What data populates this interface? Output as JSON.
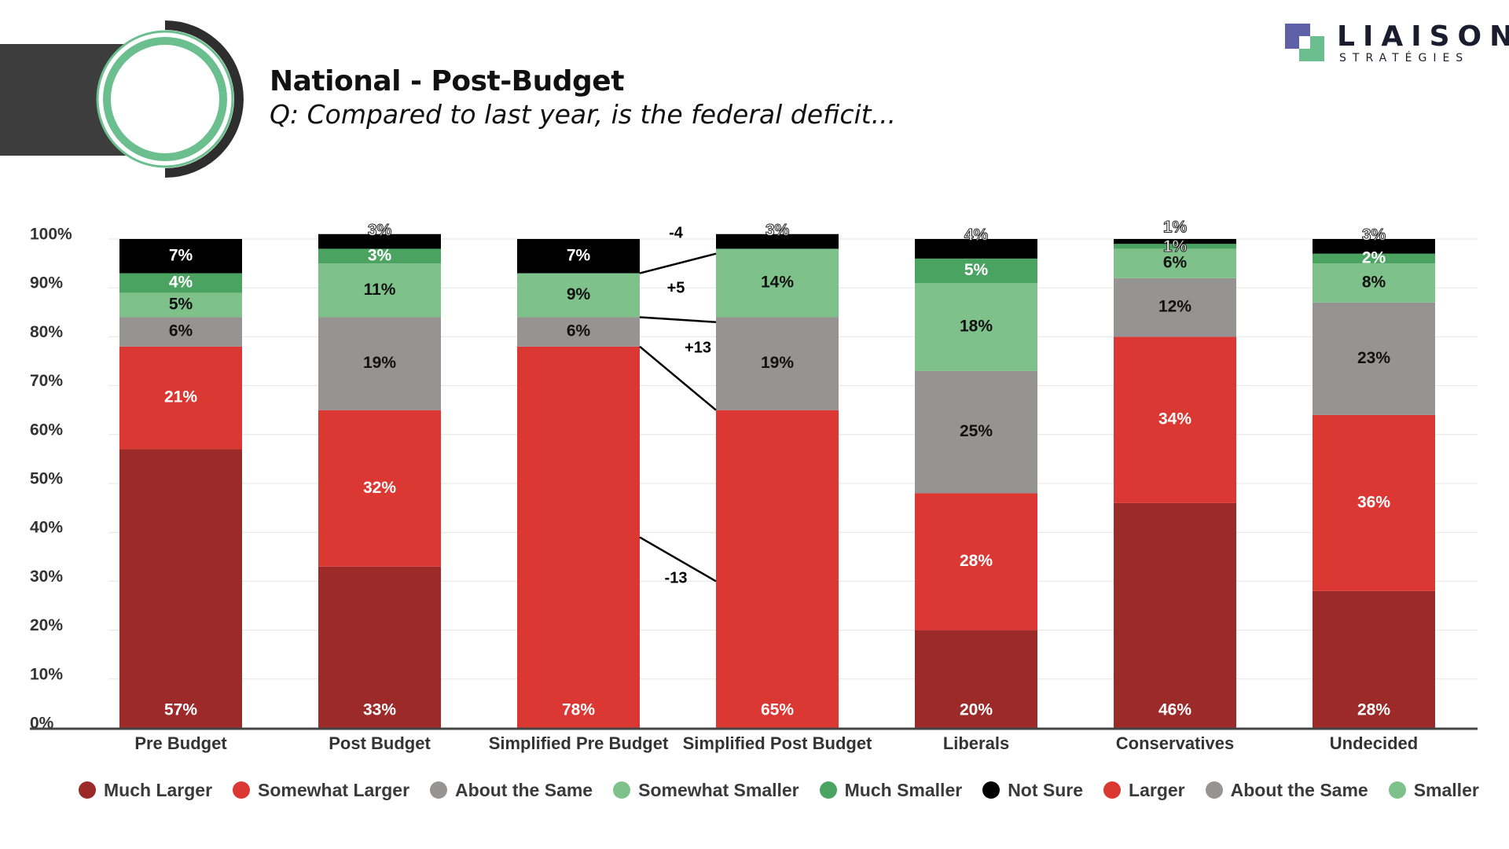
{
  "header": {
    "title": "National - Post-Budget",
    "subtitle": "Q: Compared to last year, is the federal deficit..."
  },
  "logo": {
    "word": "LIAISON",
    "sub": "STRATÉGIES"
  },
  "colors": {
    "much_larger": "#9b2a29",
    "somewhat_larger": "#db3733",
    "about_same": "#969493",
    "somewhat_smaller": "#7fc18b",
    "much_smaller": "#4aa361",
    "not_sure": "#000000",
    "brand_green": "#6bbf8e",
    "brand_purple": "#5f61a8"
  },
  "legend": [
    {
      "label": "Much Larger",
      "color": "#9b2a29"
    },
    {
      "label": "Somewhat Larger",
      "color": "#db3733"
    },
    {
      "label": "About the Same",
      "color": "#969493"
    },
    {
      "label": "Somewhat Smaller",
      "color": "#7fc18b"
    },
    {
      "label": "Much Smaller",
      "color": "#4aa361"
    },
    {
      "label": "Not Sure",
      "color": "#000000"
    },
    {
      "label": "Larger",
      "color": "#db3733"
    },
    {
      "label": "About the Same",
      "color": "#969493"
    },
    {
      "label": "Smaller",
      "color": "#7fc18b"
    }
  ],
  "chart_data": {
    "type": "bar",
    "stacked": true,
    "y_ticks": [
      "0%",
      "10%",
      "20%",
      "30%",
      "40%",
      "50%",
      "60%",
      "70%",
      "80%",
      "90%",
      "100%"
    ],
    "ylim": [
      0,
      100
    ],
    "grid": true,
    "legend_position": "bottom",
    "categories": [
      "Pre Budget",
      "Post Budget",
      "Simplified Pre Budget",
      "Simplified Post Budget",
      "Liberals",
      "Conservatives",
      "Undecided"
    ],
    "bars": [
      {
        "category": "Pre Budget",
        "segments": [
          {
            "series": "Much Larger",
            "value": 57,
            "label": "57%"
          },
          {
            "series": "Somewhat Larger",
            "value": 21,
            "label": "21%"
          },
          {
            "series": "About the Same",
            "value": 6,
            "label": "6%"
          },
          {
            "series": "Somewhat Smaller",
            "value": 5,
            "label": "5%"
          },
          {
            "series": "Much Smaller",
            "value": 4,
            "label": "4%"
          },
          {
            "series": "Not Sure",
            "value": 7,
            "label": "7%"
          }
        ]
      },
      {
        "category": "Post Budget",
        "segments": [
          {
            "series": "Much Larger",
            "value": 33,
            "label": "33%"
          },
          {
            "series": "Somewhat Larger",
            "value": 32,
            "label": "32%"
          },
          {
            "series": "About the Same",
            "value": 19,
            "label": "19%"
          },
          {
            "series": "Somewhat Smaller",
            "value": 11,
            "label": "11%"
          },
          {
            "series": "Much Smaller",
            "value": 3,
            "label": "3%"
          },
          {
            "series": "Not Sure",
            "value": 3,
            "label": "3%"
          }
        ]
      },
      {
        "category": "Simplified Pre Budget",
        "segments": [
          {
            "series": "Larger",
            "value": 78,
            "label": "78%"
          },
          {
            "series": "About the Same",
            "value": 6,
            "label": "6%"
          },
          {
            "series": "Smaller",
            "value": 9,
            "label": "9%"
          },
          {
            "series": "Not Sure",
            "value": 7,
            "label": "7%"
          }
        ]
      },
      {
        "category": "Simplified Post Budget",
        "segments": [
          {
            "series": "Larger",
            "value": 65,
            "label": "65%"
          },
          {
            "series": "About the Same",
            "value": 19,
            "label": "19%"
          },
          {
            "series": "Smaller",
            "value": 14,
            "label": "14%"
          },
          {
            "series": "Not Sure",
            "value": 3,
            "label": "3%"
          }
        ]
      },
      {
        "category": "Liberals",
        "segments": [
          {
            "series": "Much Larger",
            "value": 20,
            "label": "20%"
          },
          {
            "series": "Somewhat Larger",
            "value": 28,
            "label": "28%"
          },
          {
            "series": "About the Same",
            "value": 25,
            "label": "25%"
          },
          {
            "series": "Somewhat Smaller",
            "value": 18,
            "label": "18%"
          },
          {
            "series": "Much Smaller",
            "value": 5,
            "label": "5%"
          },
          {
            "series": "Not Sure",
            "value": 4,
            "label": "4%"
          }
        ]
      },
      {
        "category": "Conservatives",
        "segments": [
          {
            "series": "Much Larger",
            "value": 46,
            "label": "46%"
          },
          {
            "series": "Somewhat Larger",
            "value": 34,
            "label": "34%"
          },
          {
            "series": "About the Same",
            "value": 12,
            "label": "12%"
          },
          {
            "series": "Somewhat Smaller",
            "value": 6,
            "label": "6%"
          },
          {
            "series": "Much Smaller",
            "value": 1,
            "label": "1%"
          },
          {
            "series": "Not Sure",
            "value": 1,
            "label": "1%"
          }
        ]
      },
      {
        "category": "Undecided",
        "segments": [
          {
            "series": "Much Larger",
            "value": 28,
            "label": "28%"
          },
          {
            "series": "Somewhat Larger",
            "value": 36,
            "label": "36%"
          },
          {
            "series": "About the Same",
            "value": 23,
            "label": "23%"
          },
          {
            "series": "Somewhat Smaller",
            "value": 8,
            "label": "8%"
          },
          {
            "series": "Much Smaller",
            "value": 2,
            "label": "2%"
          },
          {
            "series": "Not Sure",
            "value": 3,
            "label": "3%"
          }
        ]
      }
    ],
    "annotations": [
      {
        "label": "-4",
        "series": "Not Sure"
      },
      {
        "label": "+5",
        "series": "Smaller"
      },
      {
        "label": "+13",
        "series": "About the Same"
      },
      {
        "label": "-13",
        "series": "Larger"
      }
    ]
  }
}
